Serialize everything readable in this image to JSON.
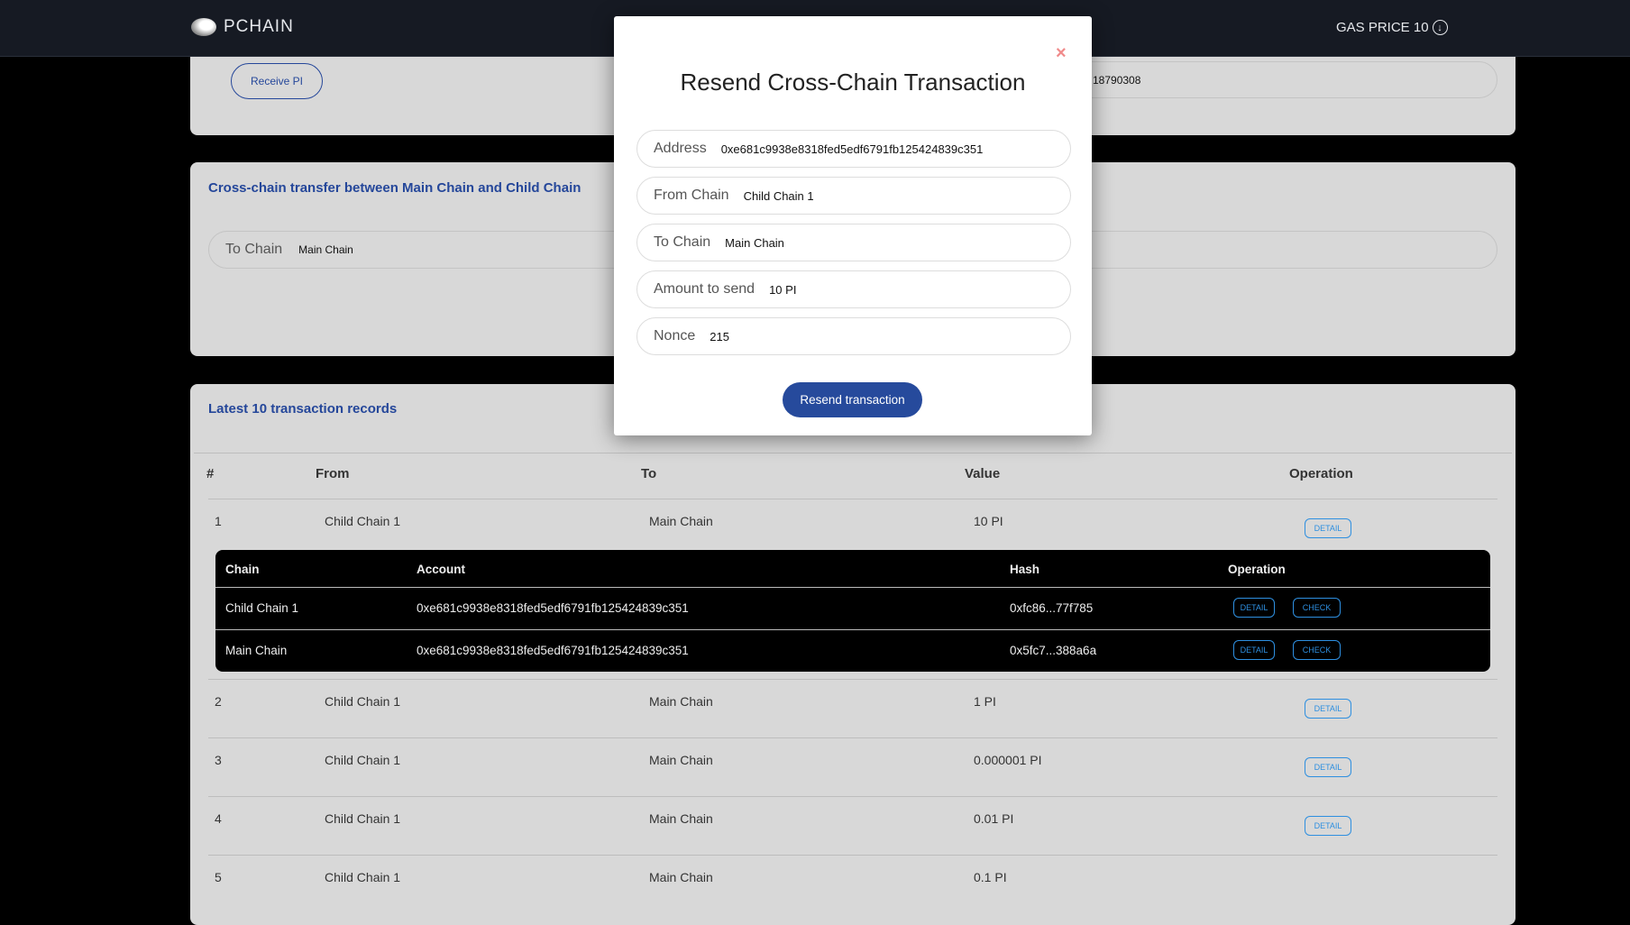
{
  "header": {
    "brand": "PCHAIN",
    "gas_price": "GAS PRICE 10",
    "gas_icon": "arrow-down-circle-icon"
  },
  "receive_card": {
    "receive_button": "Receive PI",
    "address_fragment": "18790308"
  },
  "transfer_card": {
    "title": "Cross-chain transfer between Main Chain and Child Chain",
    "to_chain_label": "To Chain",
    "to_chain_value": "Main Chain"
  },
  "records": {
    "title": "Latest 10 transaction records",
    "columns": [
      "#",
      "From",
      "To",
      "Value",
      "Operation"
    ],
    "rows": [
      {
        "n": "1",
        "from": "Child Chain 1",
        "to": "Main Chain",
        "value": "10 PI",
        "op": "DETAIL"
      },
      {
        "n": "2",
        "from": "Child Chain 1",
        "to": "Main Chain",
        "value": "1 PI",
        "op": "DETAIL"
      },
      {
        "n": "3",
        "from": "Child Chain 1",
        "to": "Main Chain",
        "value": "0.000001 PI",
        "op": "DETAIL"
      },
      {
        "n": "4",
        "from": "Child Chain 1",
        "to": "Main Chain",
        "value": "0.01 PI",
        "op": "DETAIL"
      },
      {
        "n": "5",
        "from": "Child Chain 1",
        "to": "Main Chain",
        "value": "0.1 PI"
      }
    ],
    "detail": {
      "columns": [
        "Chain",
        "Account",
        "Hash",
        "Operation"
      ],
      "rows": [
        {
          "chain": "Child Chain 1",
          "account": "0xe681c9938e8318fed5edf6791fb125424839c351",
          "hash": "0xfc86...77f785",
          "detail": "DETAIL",
          "check": "CHECK"
        },
        {
          "chain": "Main Chain",
          "account": "0xe681c9938e8318fed5edf6791fb125424839c351",
          "hash": "0x5fc7...388a6a",
          "detail": "DETAIL",
          "check": "CHECK"
        }
      ]
    }
  },
  "modal": {
    "title": "Resend Cross-Chain Transaction",
    "close": "×",
    "fields": [
      {
        "label": "Address",
        "value": "0xe681c9938e8318fed5edf6791fb125424839c351"
      },
      {
        "label": "From Chain",
        "value": "Child Chain 1"
      },
      {
        "label": "To Chain",
        "value": "Main Chain"
      },
      {
        "label": "Amount to send",
        "value": "10 PI"
      },
      {
        "label": "Nonce",
        "value": "215"
      }
    ],
    "submit": "Resend transaction"
  },
  "colors": {
    "header_bg": "#161a23",
    "accent": "#264a9c",
    "link_blue": "#2e8fe0",
    "close_red": "#f08a8a"
  }
}
